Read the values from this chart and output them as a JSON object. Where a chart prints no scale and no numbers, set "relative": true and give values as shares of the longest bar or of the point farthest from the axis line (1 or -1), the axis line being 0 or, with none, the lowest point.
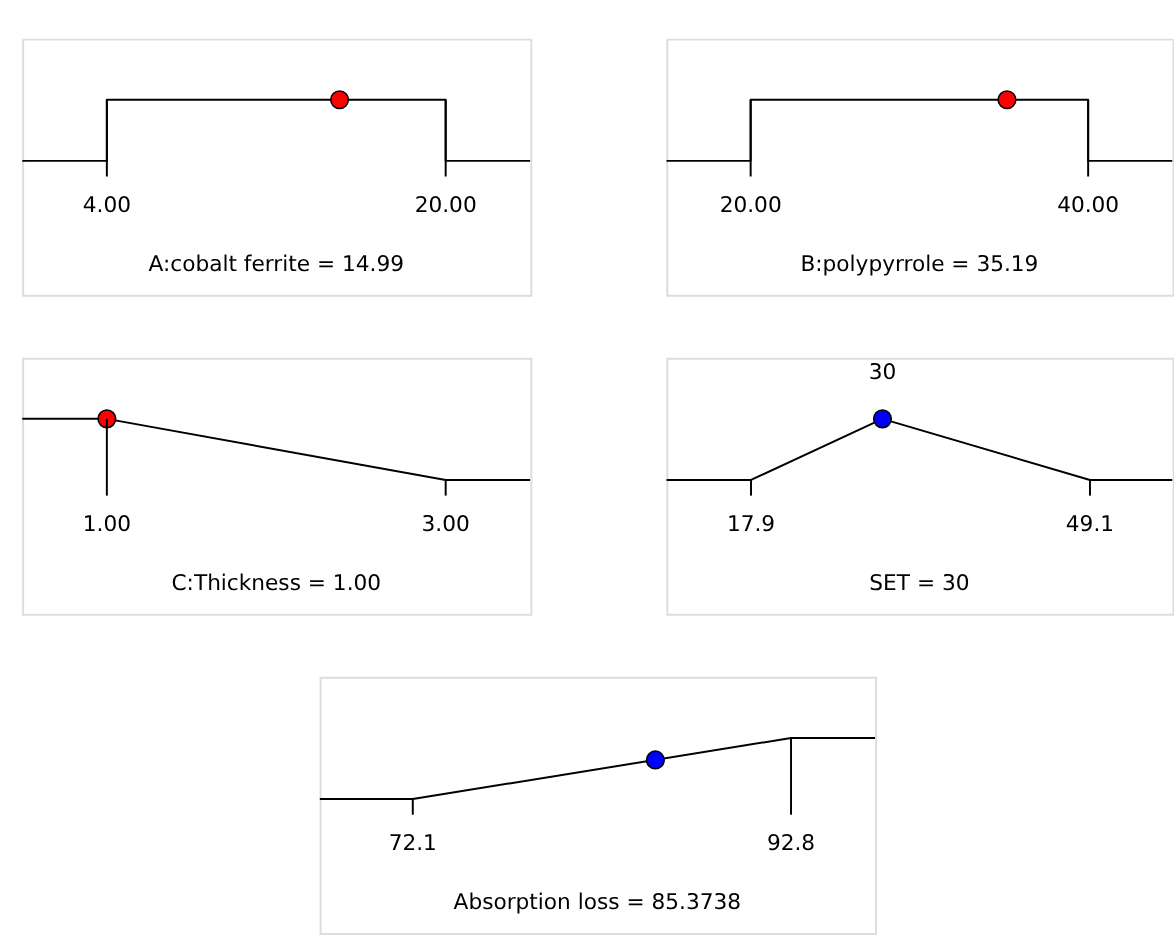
{
  "chart_data": [
    {
      "type": "line",
      "relative": true,
      "xlabel": "A:cobalt ferrite = 14.99",
      "xlim": [
        0,
        24
      ],
      "xticks": [
        {
          "value": 4,
          "label": "4.00"
        },
        {
          "value": 20,
          "label": "20.00"
        }
      ],
      "series": [
        {
          "color": "#000000",
          "x": [
            0,
            4,
            4,
            20,
            20,
            24
          ],
          "values": [
            0,
            0,
            1,
            1,
            0,
            0
          ]
        },
        {
          "type": "scatter",
          "marker": "circle",
          "color": "#ff0000",
          "x": [
            14.99
          ],
          "values": [
            1
          ]
        }
      ]
    },
    {
      "type": "line",
      "relative": true,
      "xlabel": "B:polypyrrole = 35.19",
      "xlim": [
        15,
        45
      ],
      "xticks": [
        {
          "value": 20,
          "label": "20.00"
        },
        {
          "value": 40,
          "label": "40.00"
        }
      ],
      "series": [
        {
          "color": "#000000",
          "x": [
            15,
            20,
            20,
            40,
            40,
            45
          ],
          "values": [
            0,
            0,
            1,
            1,
            0,
            0
          ]
        },
        {
          "type": "scatter",
          "marker": "circle",
          "color": "#ff0000",
          "x": [
            35.19
          ],
          "values": [
            1
          ]
        }
      ]
    },
    {
      "type": "line",
      "relative": true,
      "xlabel": "C:Thickness = 1.00",
      "xlim": [
        0.5,
        3.5
      ],
      "xticks": [
        {
          "value": 1,
          "label": "1.00"
        },
        {
          "value": 3,
          "label": "3.00"
        }
      ],
      "series": [
        {
          "color": "#000000",
          "x": [
            0.5,
            1,
            3,
            3.5
          ],
          "values": [
            1,
            1,
            0,
            0
          ]
        },
        {
          "type": "scatter",
          "marker": "circle",
          "color": "#ff0000",
          "x": [
            1
          ],
          "values": [
            1
          ]
        }
      ]
    },
    {
      "type": "line",
      "relative": true,
      "xlabel": "SET = 30",
      "xlim": [
        10.1,
        56.7
      ],
      "xticks": [
        17.9,
        49.1
      ],
      "annotations": [
        {
          "text": "30",
          "x": 30,
          "y": 1
        }
      ],
      "series": [
        {
          "color": "#000000",
          "x": [
            10.1,
            17.9,
            30,
            49.1,
            56.7
          ],
          "values": [
            0,
            0,
            1,
            0,
            0
          ]
        },
        {
          "type": "scatter",
          "marker": "circle",
          "color": "#0000ff",
          "x": [
            30
          ],
          "values": [
            1
          ]
        }
      ]
    },
    {
      "type": "line",
      "relative": true,
      "xlabel": "Absorption loss = 85.3738",
      "xlim": [
        67,
        97.4
      ],
      "xticks": [
        72.1,
        92.8
      ],
      "series": [
        {
          "color": "#000000",
          "x": [
            67,
            72.1,
            92.8,
            97.4
          ],
          "values": [
            0,
            0,
            1,
            1
          ]
        },
        {
          "type": "scatter",
          "marker": "circle",
          "color": "#0000ff",
          "x": [
            85.3738
          ],
          "values": [
            0.64
          ]
        }
      ]
    }
  ]
}
